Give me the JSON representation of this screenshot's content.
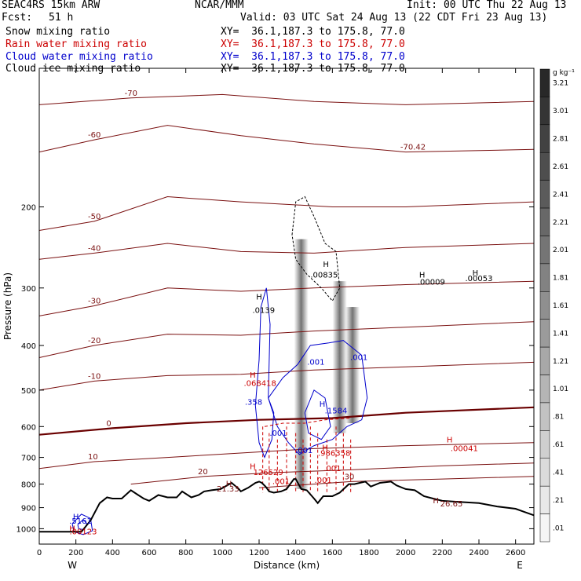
{
  "header": {
    "model": "SEAC4RS 15km ARW",
    "org": "NCAR/MMM",
    "init": "Init: 00 UTC Thu 22 Aug 13",
    "fcst_label": "Fcst:",
    "fcst_value": "51 h",
    "valid": "Valid: 03 UTC Sat 24 Aug 13 (22 CDT Fri 23 Aug 13)"
  },
  "fields": [
    {
      "name": "Snow mixing ratio",
      "xy": "XY=  36.1,187.3 to 175.8, 77.0",
      "color": "#000000"
    },
    {
      "name": "Rain water mixing ratio",
      "xy": "XY=  36.1,187.3 to 175.8, 77.0",
      "color": "#cc0000"
    },
    {
      "name": "Cloud water mixing ratio",
      "xy": "XY=  36.1,187.3 to 175.8, 77.0",
      "color": "#0000cc"
    },
    {
      "name": "Cloud ice mixing ratio",
      "xy": "XY=  36.1,187.3 to 175.8, 77.0",
      "color": "#000000"
    }
  ],
  "colors": {
    "temperature": "#7a1010",
    "freezing_level": "#6a0000",
    "terrain": "#000000",
    "rain": "#cc0000",
    "cloud": "#0000cc",
    "background": "#ffffff"
  },
  "chart_data": {
    "type": "cross-section",
    "xlabel": "Distance (km)",
    "ylabel": "Pressure (hPa)",
    "xlim": [
      0,
      2700
    ],
    "ylim": [
      1080,
      100
    ],
    "y_scale": "log",
    "x_ticks": [
      "0",
      "200",
      "400",
      "600",
      "800",
      "1000",
      "1200",
      "1400",
      "1600",
      "1800",
      "2000",
      "2200",
      "2400",
      "2600"
    ],
    "y_ticks": [
      "200",
      "300",
      "400",
      "500",
      "600",
      "700",
      "800",
      "900",
      "1000"
    ],
    "x_end_labels": {
      "left": "W",
      "right": "E"
    },
    "colorbar": {
      "unit": "g kg⁻¹",
      "labels": [
        "3.21",
        "3.01",
        "2.81",
        "2.61",
        "2.41",
        "2.21",
        "2.01",
        "1.81",
        "1.61",
        "1.41",
        "1.21",
        "1.01",
        ".81",
        ".61",
        ".41",
        ".21",
        ".01"
      ]
    },
    "terrain": [
      [
        0,
        1015
      ],
      [
        230,
        1015
      ],
      [
        280,
        960
      ],
      [
        330,
        880
      ],
      [
        370,
        855
      ],
      [
        400,
        860
      ],
      [
        450,
        860
      ],
      [
        500,
        825
      ],
      [
        540,
        845
      ],
      [
        570,
        860
      ],
      [
        600,
        870
      ],
      [
        650,
        845
      ],
      [
        700,
        855
      ],
      [
        750,
        855
      ],
      [
        780,
        830
      ],
      [
        830,
        855
      ],
      [
        870,
        845
      ],
      [
        900,
        830
      ],
      [
        940,
        825
      ],
      [
        990,
        820
      ],
      [
        1050,
        795
      ],
      [
        1090,
        820
      ],
      [
        1100,
        830
      ],
      [
        1140,
        815
      ],
      [
        1180,
        795
      ],
      [
        1200,
        790
      ],
      [
        1215,
        795
      ],
      [
        1235,
        810
      ],
      [
        1255,
        830
      ],
      [
        1280,
        835
      ],
      [
        1320,
        830
      ],
      [
        1350,
        820
      ],
      [
        1390,
        780
      ],
      [
        1400,
        780
      ],
      [
        1430,
        820
      ],
      [
        1460,
        825
      ],
      [
        1500,
        860
      ],
      [
        1520,
        880
      ],
      [
        1550,
        850
      ],
      [
        1600,
        850
      ],
      [
        1640,
        835
      ],
      [
        1690,
        800
      ],
      [
        1720,
        800
      ],
      [
        1780,
        790
      ],
      [
        1810,
        810
      ],
      [
        1860,
        795
      ],
      [
        1920,
        790
      ],
      [
        1950,
        805
      ],
      [
        2000,
        820
      ],
      [
        2050,
        825
      ],
      [
        2100,
        850
      ],
      [
        2150,
        860
      ],
      [
        2200,
        870
      ],
      [
        2300,
        875
      ],
      [
        2400,
        880
      ],
      [
        2500,
        895
      ],
      [
        2600,
        905
      ],
      [
        2650,
        920
      ],
      [
        2700,
        935
      ]
    ],
    "temperature_isotherms": [
      {
        "label": "-70",
        "points": [
          [
            0,
            120
          ],
          [
            500,
            116
          ],
          [
            1000,
            114
          ],
          [
            1500,
            118
          ],
          [
            2000,
            120
          ],
          [
            2700,
            118
          ]
        ]
      },
      {
        "label": "-60",
        "points": [
          [
            0,
            152
          ],
          [
            300,
            143
          ],
          [
            700,
            133
          ],
          [
            1100,
            140
          ],
          [
            1500,
            146
          ],
          [
            2000,
            152
          ],
          [
            2700,
            150
          ]
        ]
      },
      {
        "label": "-50",
        "points": [
          [
            0,
            225
          ],
          [
            300,
            215
          ],
          [
            700,
            190
          ],
          [
            1100,
            195
          ],
          [
            1600,
            200
          ],
          [
            2000,
            200
          ],
          [
            2700,
            195
          ]
        ]
      },
      {
        "label": "-40",
        "points": [
          [
            0,
            260
          ],
          [
            300,
            252
          ],
          [
            700,
            240
          ],
          [
            1100,
            250
          ],
          [
            1500,
            252
          ],
          [
            2000,
            245
          ],
          [
            2700,
            240
          ]
        ]
      },
      {
        "label": "-30",
        "points": [
          [
            0,
            345
          ],
          [
            300,
            328
          ],
          [
            700,
            300
          ],
          [
            1100,
            305
          ],
          [
            1500,
            300
          ],
          [
            2000,
            295
          ],
          [
            2700,
            290
          ]
        ]
      },
      {
        "label": "-20",
        "points": [
          [
            0,
            425
          ],
          [
            300,
            400
          ],
          [
            700,
            378
          ],
          [
            1100,
            380
          ],
          [
            1500,
            372
          ],
          [
            2000,
            365
          ],
          [
            2700,
            355
          ]
        ]
      },
      {
        "label": "-10",
        "points": [
          [
            0,
            500
          ],
          [
            300,
            478
          ],
          [
            700,
            465
          ],
          [
            1100,
            462
          ],
          [
            1500,
            452
          ],
          [
            2000,
            445
          ],
          [
            2700,
            435
          ]
        ]
      },
      {
        "label": "0",
        "points": [
          [
            0,
            625
          ],
          [
            400,
            605
          ],
          [
            800,
            590
          ],
          [
            1200,
            580
          ],
          [
            1600,
            575
          ],
          [
            2000,
            560
          ],
          [
            2700,
            545
          ]
        ]
      },
      {
        "label": "10",
        "points": [
          [
            0,
            740
          ],
          [
            300,
            715
          ],
          [
            700,
            700
          ],
          [
            1100,
            685
          ],
          [
            1500,
            670
          ],
          [
            2000,
            660
          ],
          [
            2700,
            650
          ]
        ]
      },
      {
        "label": "20",
        "points": [
          [
            500,
            800
          ],
          [
            900,
            770
          ],
          [
            1300,
            755
          ],
          [
            1700,
            745
          ],
          [
            2200,
            730
          ],
          [
            2700,
            720
          ]
        ]
      },
      {
        "label": "30",
        "points": [
          [
            1200,
            815
          ],
          [
            1700,
            790
          ],
          [
            2200,
            780
          ],
          [
            2700,
            770
          ]
        ]
      }
    ],
    "annotations": [
      {
        "text": "-70.42",
        "x": 2040,
        "p": 150,
        "color": "#7a1010"
      },
      {
        "text": ".00835",
        "x": 1555,
        "p": 285,
        "color": "#000000"
      },
      {
        "text": ".00009",
        "x": 2140,
        "p": 295,
        "color": "#000000"
      },
      {
        "text": ".00053",
        "x": 2400,
        "p": 290,
        "color": "#000000"
      },
      {
        "text": ".0139",
        "x": 1225,
        "p": 340,
        "color": "#000000"
      },
      {
        "text": ".001",
        "x": 1510,
        "p": 440,
        "color": "#0000cc"
      },
      {
        "text": ".001",
        "x": 1745,
        "p": 430,
        "color": "#0000cc"
      },
      {
        "text": ".068418",
        "x": 1205,
        "p": 490,
        "color": "#cc0000"
      },
      {
        "text": ".358",
        "x": 1170,
        "p": 538,
        "color": "#0000cc"
      },
      {
        "text": ".1584",
        "x": 1620,
        "p": 562,
        "color": "#0000cc"
      },
      {
        "text": ".001",
        "x": 1305,
        "p": 628,
        "color": "#0000cc"
      },
      {
        "text": ".001",
        "x": 1445,
        "p": 685,
        "color": "#0000cc"
      },
      {
        "text": ".986358",
        "x": 1610,
        "p": 695,
        "color": "#cc0000"
      },
      {
        "text": ".00041",
        "x": 2320,
        "p": 678,
        "color": "#cc0000"
      },
      {
        "text": ".001",
        "x": 1600,
        "p": 750,
        "color": "#cc0000"
      },
      {
        "text": ".001",
        "x": 1550,
        "p": 795,
        "color": "#cc0000"
      },
      {
        "text": ".001",
        "x": 1320,
        "p": 800,
        "color": "#cc0000"
      },
      {
        "text": "126529",
        "x": 1250,
        "p": 765,
        "color": "#cc0000"
      },
      {
        "text": "21.33",
        "x": 1030,
        "p": 830,
        "color": "#7a1010"
      },
      {
        "text": "26.65",
        "x": 2250,
        "p": 895,
        "color": "#7a1010"
      },
      {
        "text": ".5161",
        "x": 225,
        "p": 975,
        "color": "#0000cc"
      },
      {
        "text": ".00123",
        "x": 240,
        "p": 1028,
        "color": "#cc0000"
      }
    ],
    "extrema_markers": [
      {
        "text": "H",
        "x": 1565,
        "p": 270,
        "color": "#000000"
      },
      {
        "text": "H",
        "x": 2090,
        "p": 285,
        "color": "#000000"
      },
      {
        "text": "H",
        "x": 2380,
        "p": 282,
        "color": "#000000"
      },
      {
        "text": "H",
        "x": 1200,
        "p": 318,
        "color": "#000000"
      },
      {
        "text": "H",
        "x": 1165,
        "p": 470,
        "color": "#cc0000"
      },
      {
        "text": "H",
        "x": 1545,
        "p": 543,
        "color": "#0000cc"
      },
      {
        "text": "H",
        "x": 1560,
        "p": 675,
        "color": "#cc0000"
      },
      {
        "text": "H",
        "x": 2240,
        "p": 650,
        "color": "#cc0000"
      },
      {
        "text": "H",
        "x": 1165,
        "p": 742,
        "color": "#cc0000"
      },
      {
        "text": "H",
        "x": 1035,
        "p": 810,
        "color": "#7a1010"
      },
      {
        "text": "H",
        "x": 2165,
        "p": 880,
        "color": "#7a1010"
      },
      {
        "text": "H",
        "x": 200,
        "p": 955,
        "color": "#0000cc"
      },
      {
        "text": "H",
        "x": 180,
        "p": 1013,
        "color": "#cc0000"
      }
    ]
  }
}
